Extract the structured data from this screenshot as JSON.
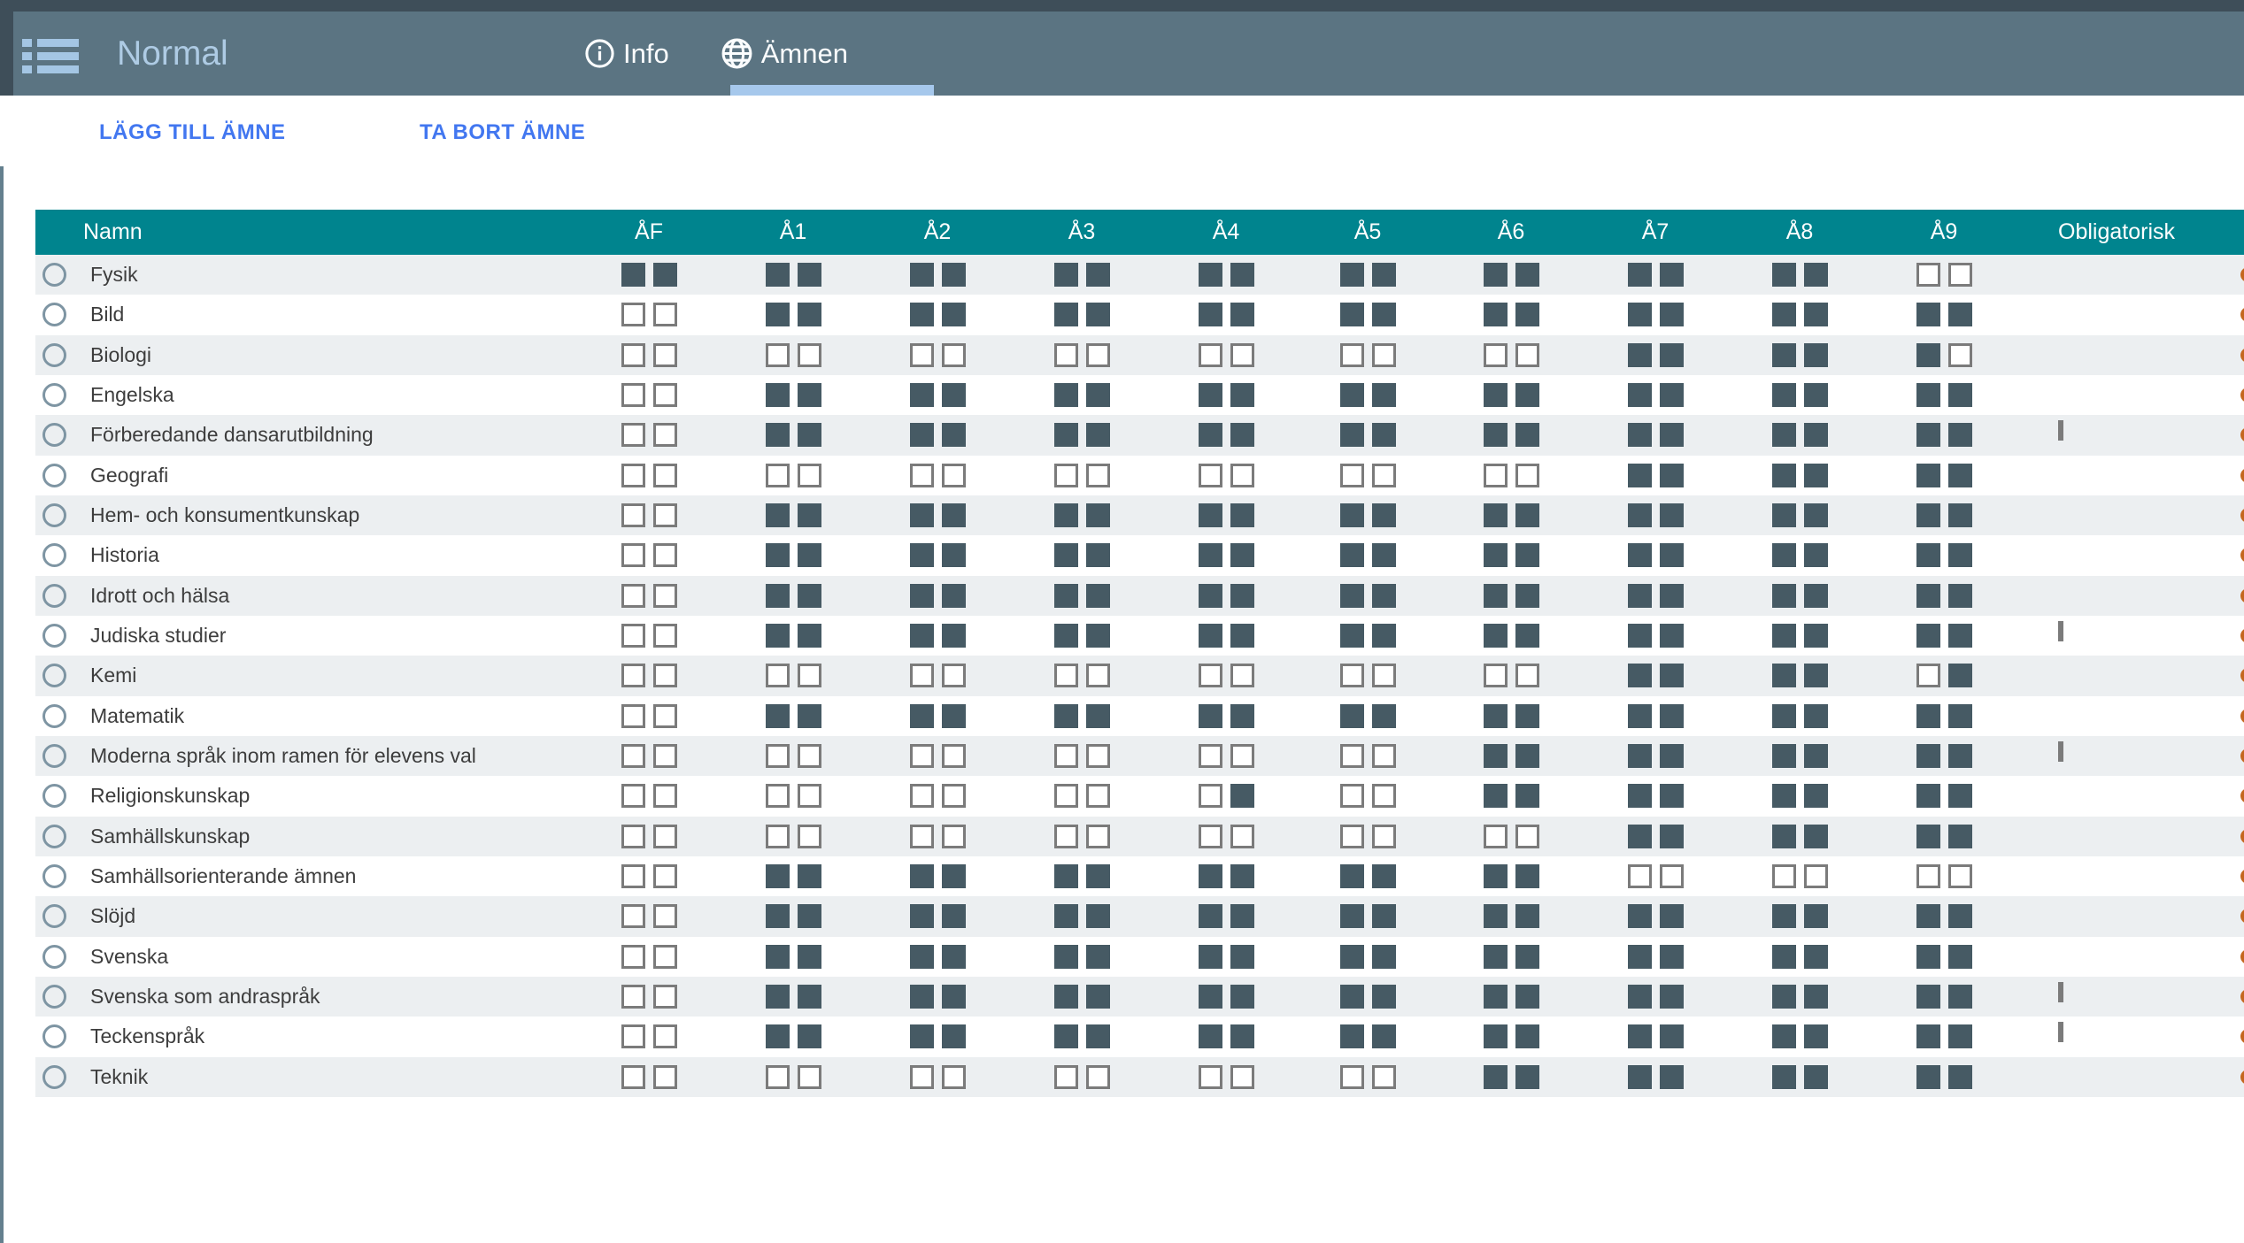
{
  "topbar": {
    "title": "Normal",
    "menu_icon": "list-menu-icon",
    "tabs": [
      {
        "label": "Info",
        "icon": "info-icon",
        "active": false
      },
      {
        "label": "Ämnen",
        "icon": "globe-icon",
        "active": true
      }
    ]
  },
  "toolbar": {
    "add_label": "LÄGG TILL ÄMNE",
    "remove_label": "TA BORT ÄMNE"
  },
  "table": {
    "name_header": "Namn",
    "grade_headers": [
      "ÅF",
      "Å1",
      "Å2",
      "Å3",
      "Å4",
      "Å5",
      "Å6",
      "Å7",
      "Å8",
      "Å9"
    ],
    "obligatorisk_header": "Obligatorisk",
    "rows": [
      {
        "name": "Fysik",
        "grades": [
          "11",
          "11",
          "11",
          "11",
          "11",
          "11",
          "11",
          "11",
          "11",
          "00"
        ],
        "obligatorisk": true
      },
      {
        "name": "Bild",
        "grades": [
          "00",
          "11",
          "11",
          "11",
          "11",
          "11",
          "11",
          "11",
          "11",
          "11"
        ],
        "obligatorisk": true
      },
      {
        "name": "Biologi",
        "grades": [
          "00",
          "00",
          "00",
          "00",
          "00",
          "00",
          "00",
          "11",
          "11",
          "10"
        ],
        "obligatorisk": true
      },
      {
        "name": "Engelska",
        "grades": [
          "00",
          "11",
          "11",
          "11",
          "11",
          "11",
          "11",
          "11",
          "11",
          "11"
        ],
        "obligatorisk": true
      },
      {
        "name": "Förberedande dansarutbildning",
        "grades": [
          "00",
          "11",
          "11",
          "11",
          "11",
          "11",
          "11",
          "11",
          "11",
          "11"
        ],
        "obligatorisk": false
      },
      {
        "name": "Geografi",
        "grades": [
          "00",
          "00",
          "00",
          "00",
          "00",
          "00",
          "00",
          "11",
          "11",
          "11"
        ],
        "obligatorisk": true
      },
      {
        "name": "Hem- och konsumentkunskap",
        "grades": [
          "00",
          "11",
          "11",
          "11",
          "11",
          "11",
          "11",
          "11",
          "11",
          "11"
        ],
        "obligatorisk": true
      },
      {
        "name": "Historia",
        "grades": [
          "00",
          "11",
          "11",
          "11",
          "11",
          "11",
          "11",
          "11",
          "11",
          "11"
        ],
        "obligatorisk": true
      },
      {
        "name": "Idrott och hälsa",
        "grades": [
          "00",
          "11",
          "11",
          "11",
          "11",
          "11",
          "11",
          "11",
          "11",
          "11"
        ],
        "obligatorisk": true
      },
      {
        "name": "Judiska studier",
        "grades": [
          "00",
          "11",
          "11",
          "11",
          "11",
          "11",
          "11",
          "11",
          "11",
          "11"
        ],
        "obligatorisk": false
      },
      {
        "name": "Kemi",
        "grades": [
          "00",
          "00",
          "00",
          "00",
          "00",
          "00",
          "00",
          "11",
          "11",
          "01"
        ],
        "obligatorisk": true
      },
      {
        "name": "Matematik",
        "grades": [
          "00",
          "11",
          "11",
          "11",
          "11",
          "11",
          "11",
          "11",
          "11",
          "11"
        ],
        "obligatorisk": true
      },
      {
        "name": "Moderna språk inom ramen för elevens val",
        "grades": [
          "00",
          "00",
          "00",
          "00",
          "00",
          "00",
          "11",
          "11",
          "11",
          "11"
        ],
        "obligatorisk": false
      },
      {
        "name": "Religionskunskap",
        "grades": [
          "00",
          "00",
          "00",
          "00",
          "01",
          "00",
          "11",
          "11",
          "11",
          "11"
        ],
        "obligatorisk": true
      },
      {
        "name": "Samhällskunskap",
        "grades": [
          "00",
          "00",
          "00",
          "00",
          "00",
          "00",
          "00",
          "11",
          "11",
          "11"
        ],
        "obligatorisk": true
      },
      {
        "name": "Samhällsorienterande ämnen",
        "grades": [
          "00",
          "11",
          "11",
          "11",
          "11",
          "11",
          "11",
          "00",
          "00",
          "00"
        ],
        "obligatorisk": true
      },
      {
        "name": "Slöjd",
        "grades": [
          "00",
          "11",
          "11",
          "11",
          "11",
          "11",
          "11",
          "11",
          "11",
          "11"
        ],
        "obligatorisk": true
      },
      {
        "name": "Svenska",
        "grades": [
          "00",
          "11",
          "11",
          "11",
          "11",
          "11",
          "11",
          "11",
          "11",
          "11"
        ],
        "obligatorisk": true
      },
      {
        "name": "Svenska som andraspråk",
        "grades": [
          "00",
          "11",
          "11",
          "11",
          "11",
          "11",
          "11",
          "11",
          "11",
          "11"
        ],
        "obligatorisk": false
      },
      {
        "name": "Teckenspråk",
        "grades": [
          "00",
          "11",
          "11",
          "11",
          "11",
          "11",
          "11",
          "11",
          "11",
          "11"
        ],
        "obligatorisk": false
      },
      {
        "name": "Teknik",
        "grades": [
          "00",
          "00",
          "00",
          "00",
          "00",
          "00",
          "11",
          "11",
          "11",
          "11"
        ],
        "obligatorisk": true
      }
    ]
  },
  "colors": {
    "topstrip": "#3e4e59",
    "appbar": "#5b7482",
    "appbar_accent": "#a6c8ec",
    "button_blue": "#4277f0",
    "table_header_teal": "#00848e",
    "checkbox_filled": "#465a64",
    "checkbox_empty_border": "#7b7b7b",
    "row_stripe": "#eceff1",
    "edge_marker_orange": "#c4671f"
  }
}
